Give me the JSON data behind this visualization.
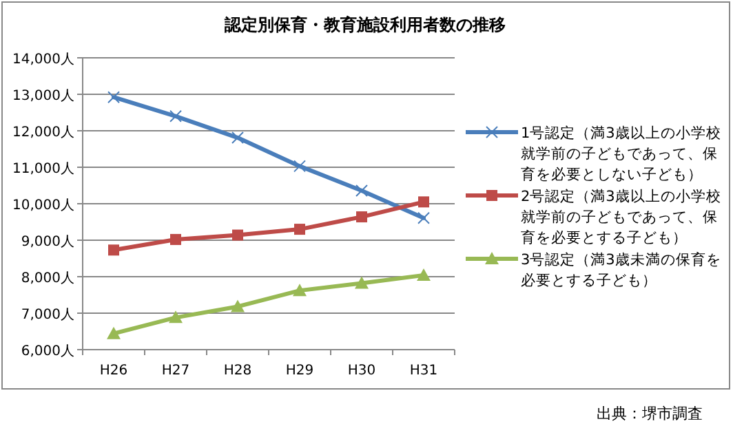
{
  "chart_data": {
    "type": "line",
    "title": "認定別保育・教育施設利用者数の推移",
    "categories": [
      "H26",
      "H27",
      "H28",
      "H29",
      "H30",
      "H31"
    ],
    "series": [
      {
        "name": "1号認定（満3歳以上の小学校就学前の子どもであって、保育を必要としない子ども）",
        "color": "#4a7ebb",
        "marker": "cross",
        "values": [
          12920,
          12400,
          11810,
          11030,
          10360,
          9610
        ]
      },
      {
        "name": "2号認定（満3歳以上の小学校就学前の子どもであって、保育を必要とする子ども）",
        "color": "#be4b48",
        "marker": "square",
        "values": [
          8730,
          9020,
          9140,
          9300,
          9640,
          10050
        ]
      },
      {
        "name": "3号認定（満3歳未満の保育を必要とする子ども）",
        "color": "#98b954",
        "marker": "triangle",
        "values": [
          6440,
          6880,
          7180,
          7620,
          7820,
          8040
        ]
      }
    ],
    "ylim": [
      6000,
      14000
    ],
    "yticks": [
      {
        "value": 6000,
        "label": "6,000人"
      },
      {
        "value": 7000,
        "label": "7,000人"
      },
      {
        "value": 8000,
        "label": "8,000人"
      },
      {
        "value": 9000,
        "label": "9,000人"
      },
      {
        "value": 10000,
        "label": "10,000人"
      },
      {
        "value": 11000,
        "label": "11,000人"
      },
      {
        "value": 12000,
        "label": "12,000人"
      },
      {
        "value": 13000,
        "label": "13,000人"
      },
      {
        "value": 14000,
        "label": "14,000人"
      }
    ],
    "grid": "y",
    "legend": "right",
    "annotations": [
      "出典：堺市調査"
    ]
  }
}
